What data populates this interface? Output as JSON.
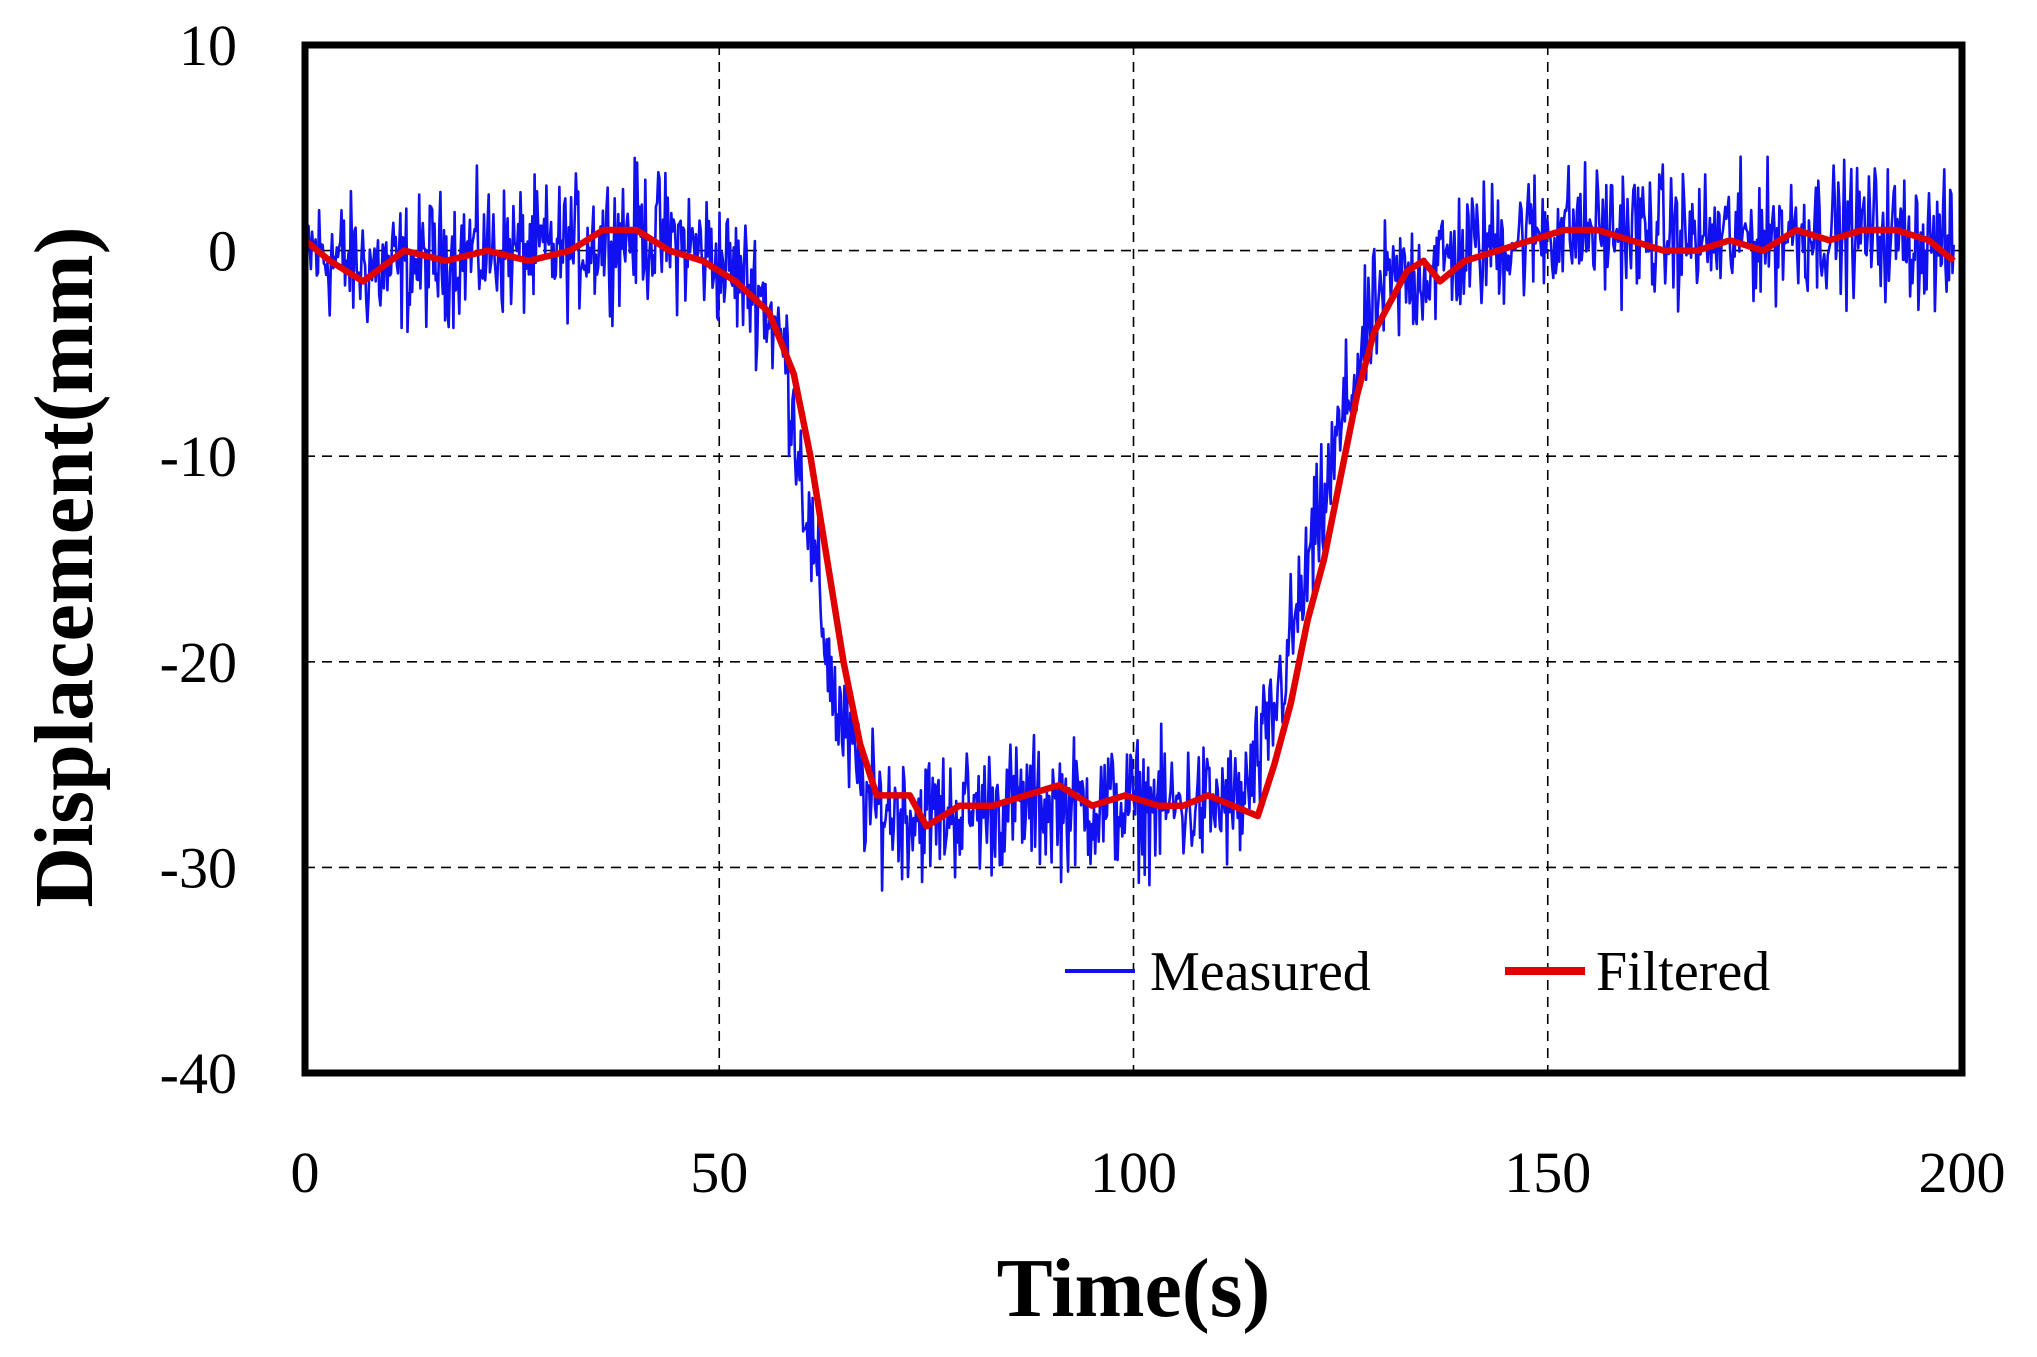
{
  "chart_data": {
    "type": "line",
    "title": "",
    "xlabel": "Time(s)",
    "ylabel": "Displacement(mm)",
    "xlim": [
      0,
      200
    ],
    "ylim": [
      -40,
      10
    ],
    "xticks": [
      0,
      50,
      100,
      150,
      200
    ],
    "yticks": [
      10,
      0,
      -10,
      -20,
      -30,
      -40
    ],
    "grid": true,
    "legend_position": "bottom-right",
    "series": [
      {
        "name": "Measured",
        "color": "#1010f0",
        "noise_amplitude": 2.2,
        "x": [
          0,
          10,
          20,
          30,
          40,
          48,
          55,
          58,
          61,
          64,
          68,
          75,
          85,
          95,
          105,
          113,
          116,
          119,
          122,
          126,
          130,
          135,
          140,
          150,
          160,
          170,
          180,
          190,
          199
        ],
        "values": [
          0,
          -1,
          0,
          0,
          1,
          0,
          -2,
          -5,
          -14,
          -22,
          -27,
          -27.5,
          -27,
          -27,
          -27,
          -27,
          -24,
          -19,
          -14,
          -7,
          -2,
          -1,
          0,
          1,
          1,
          0.5,
          1,
          1,
          0
        ]
      },
      {
        "name": "Filtered",
        "color": "#e00000",
        "x": [
          0,
          3,
          7,
          12,
          17,
          22,
          27,
          32,
          36,
          40,
          44,
          48,
          52,
          56,
          59,
          61,
          63,
          65,
          67,
          69,
          71,
          73,
          75,
          79,
          83,
          87,
          91,
          95,
          99,
          103,
          106,
          109,
          112,
          115,
          117,
          119,
          121,
          123,
          125,
          127,
          129,
          131,
          133,
          135,
          137,
          140,
          144,
          148,
          152,
          156,
          160,
          164,
          168,
          172,
          176,
          180,
          184,
          188,
          192,
          196,
          199
        ],
        "values": [
          0.5,
          -0.5,
          -1.5,
          0,
          -0.5,
          0,
          -0.5,
          0,
          1,
          1,
          0,
          -0.5,
          -1.5,
          -3,
          -6,
          -10,
          -15,
          -20,
          -24,
          -26.5,
          -26.5,
          -26.5,
          -28,
          -27,
          -27,
          -26.5,
          -26,
          -27,
          -26.5,
          -27,
          -27,
          -26.5,
          -27,
          -27.5,
          -25,
          -22,
          -18,
          -15,
          -11,
          -7,
          -4,
          -2.5,
          -1,
          -0.5,
          -1.5,
          -0.5,
          0,
          0.5,
          1,
          1,
          0.5,
          0,
          0,
          0.5,
          0,
          1,
          0.5,
          1,
          1,
          0.5,
          -0.5
        ]
      }
    ]
  }
}
